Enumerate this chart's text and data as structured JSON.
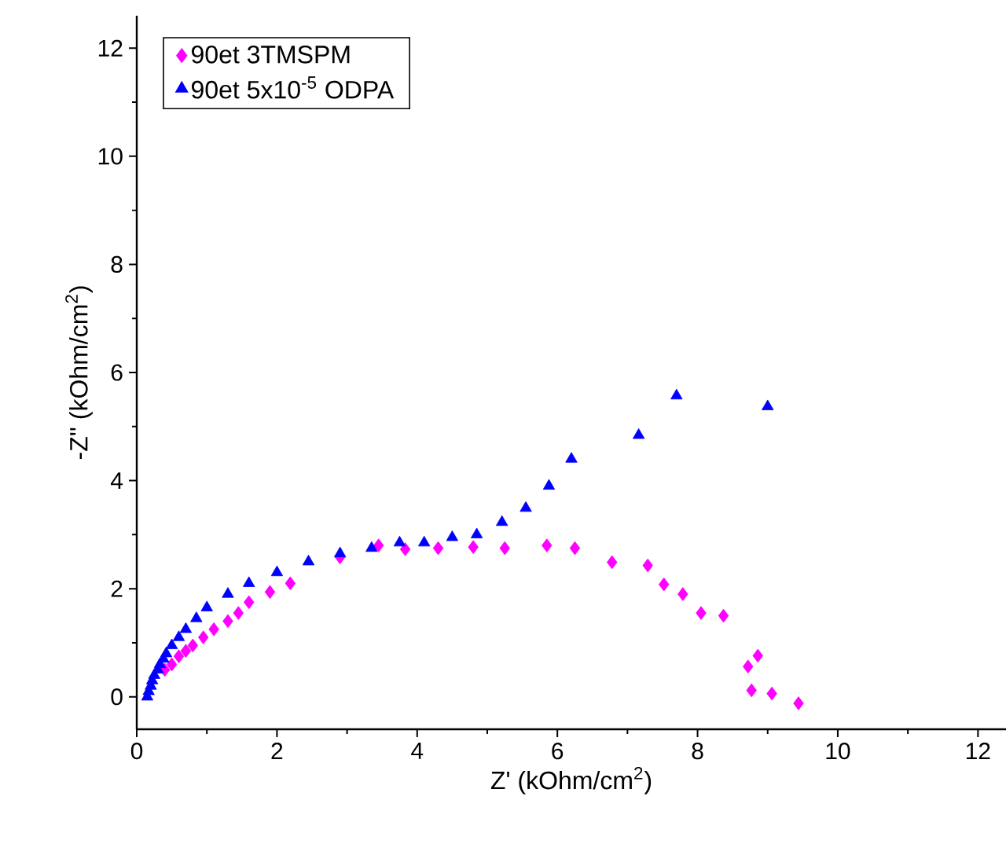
{
  "chart_data": {
    "type": "scatter",
    "xlabel": "Z' (kOhm/cm$^{2}$)",
    "ylabel": "-Z'' (kOhm/cm$^{2}$)",
    "xlim": [
      0,
      12.4
    ],
    "ylim": [
      -0.6,
      12.6
    ],
    "xticks": [
      0,
      2,
      4,
      6,
      8,
      10,
      12
    ],
    "yticks": [
      0,
      2,
      4,
      6,
      8,
      10,
      12
    ],
    "legend": "top left",
    "series": [
      {
        "name": "90et 3TMSPM",
        "color": "#ff00ff",
        "marker": "diamond",
        "x": [
          0.4,
          0.5,
          0.6,
          0.7,
          0.8,
          0.95,
          1.1,
          1.3,
          1.45,
          1.6,
          1.9,
          2.19,
          2.9,
          3.45,
          3.83,
          4.3,
          4.8,
          5.25,
          5.85,
          6.25,
          6.78,
          7.29,
          7.52,
          7.79,
          8.05,
          8.37,
          8.72,
          8.86,
          8.77,
          9.06,
          9.44
        ],
        "values": [
          0.5,
          0.6,
          0.75,
          0.85,
          0.95,
          1.1,
          1.25,
          1.4,
          1.55,
          1.75,
          1.94,
          2.1,
          2.58,
          2.8,
          2.73,
          2.75,
          2.77,
          2.75,
          2.8,
          2.75,
          2.49,
          2.43,
          2.08,
          1.9,
          1.55,
          1.5,
          0.56,
          0.76,
          0.12,
          0.06,
          -0.12
        ]
      },
      {
        "name": "90et 5x10$^{-5}$ ODPA",
        "color": "#0000ff",
        "marker": "triangle",
        "x": [
          0.15,
          0.17,
          0.2,
          0.22,
          0.25,
          0.3,
          0.33,
          0.38,
          0.42,
          0.5,
          0.6,
          0.7,
          0.85,
          1.0,
          1.3,
          1.6,
          2.0,
          2.45,
          2.9,
          3.35,
          3.75,
          4.1,
          4.5,
          4.85,
          5.21,
          5.55,
          5.88,
          6.2,
          7.16,
          7.7,
          9.0
        ],
        "values": [
          0.0,
          0.1,
          0.2,
          0.3,
          0.4,
          0.5,
          0.6,
          0.7,
          0.8,
          0.95,
          1.1,
          1.25,
          1.45,
          1.65,
          1.9,
          2.1,
          2.3,
          2.5,
          2.65,
          2.75,
          2.85,
          2.85,
          2.95,
          3.0,
          3.23,
          3.49,
          3.9,
          4.4,
          4.84,
          5.57,
          5.37
        ]
      }
    ]
  }
}
